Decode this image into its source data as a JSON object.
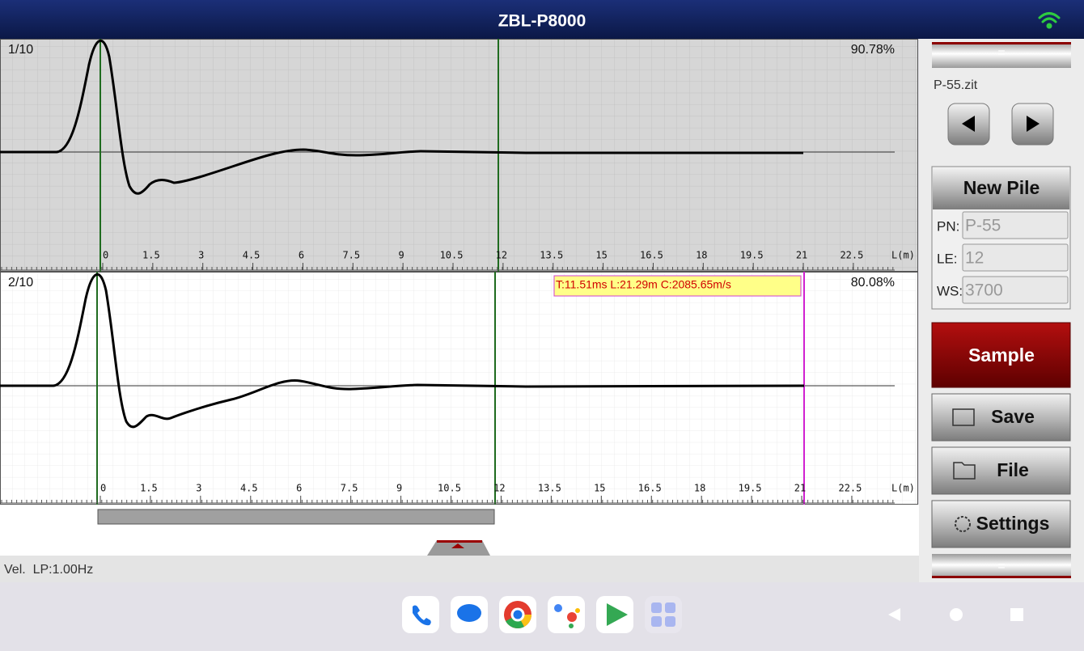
{
  "header": {
    "title": "ZBL-P8000"
  },
  "plots": [
    {
      "label": "1/10",
      "percent": "90.78%",
      "unit": "L(m)",
      "ticks": [
        "0",
        "1.5",
        "3",
        "4.5",
        "6",
        "7.5",
        "9",
        "10.5",
        "12",
        "13.5",
        "15",
        "16.5",
        "18",
        "19.5",
        "21",
        "22.5"
      ]
    },
    {
      "label": "2/10",
      "percent": "80.08%",
      "unit": "L(m)",
      "cursor": "T:11.51ms L:21.29m C:2085.65m/s",
      "ticks": [
        "0",
        "1.5",
        "3",
        "4.5",
        "6",
        "7.5",
        "9",
        "10.5",
        "12",
        "13.5",
        "15",
        "16.5",
        "18",
        "19.5",
        "21",
        "22.5"
      ]
    }
  ],
  "status": "Vel.  LP:1.00Hz",
  "sidebar": {
    "top_handle": "=",
    "file": "P-55.zit",
    "new_pile": "New Pile",
    "fields": [
      {
        "label": "PN:",
        "value": "P-55"
      },
      {
        "label": "LE:",
        "value": "12"
      },
      {
        "label": "WS:",
        "value": "3700"
      }
    ],
    "sample": "Sample",
    "save": "Save",
    "file_button": "File",
    "settings": "Settings",
    "bottom_handle": "="
  }
}
